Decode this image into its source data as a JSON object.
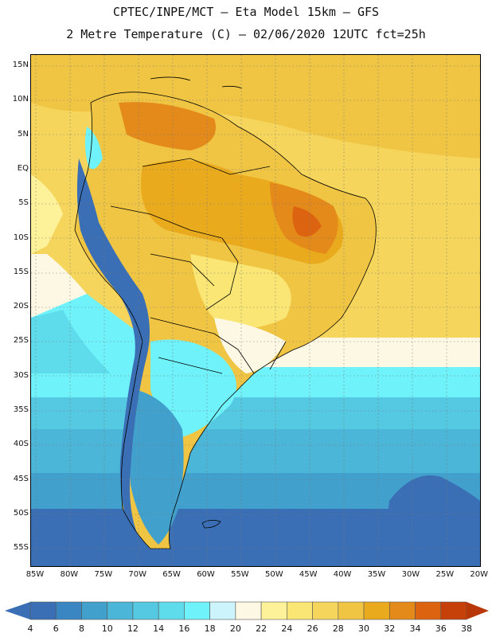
{
  "header": {
    "line1": "CPTEC/INPE/MCT –  Eta Model 15km – GFS",
    "line2": "2 Metre Temperature (C) – 02/06/2020 12UTC fct=25h"
  },
  "map": {
    "lat_labels": [
      "15N",
      "10N",
      "5N",
      "EQ",
      "5S",
      "10S",
      "15S",
      "20S",
      "25S",
      "30S",
      "35S",
      "40S",
      "45S",
      "50S",
      "55S"
    ],
    "lon_labels": [
      "85W",
      "80W",
      "75W",
      "70W",
      "65W",
      "60W",
      "55W",
      "50W",
      "45W",
      "40W",
      "35W",
      "30W",
      "25W",
      "20W"
    ],
    "variable": "2 Metre Temperature",
    "units": "C"
  },
  "legend": {
    "values": [
      "4",
      "6",
      "8",
      "10",
      "12",
      "14",
      "16",
      "18",
      "20",
      "22",
      "24",
      "26",
      "28",
      "30",
      "32",
      "34",
      "36",
      "38"
    ],
    "colors": [
      "#3a6fb5",
      "#3a86c2",
      "#41a1cc",
      "#4bb6d8",
      "#55c9e2",
      "#5fdcec",
      "#6ff2fa",
      "#ccf4fc",
      "#fdf8e4",
      "#fdf29a",
      "#fae674",
      "#f5d55b",
      "#f0c544",
      "#eaaa1e",
      "#e48a1a",
      "#dc6410",
      "#c6400a"
    ],
    "under_color": "#3a6fb5",
    "over_color": "#b8380a"
  }
}
